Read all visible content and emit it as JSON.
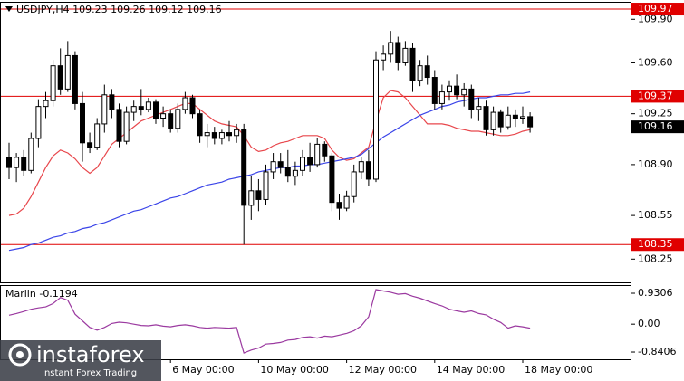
{
  "chart_data": [
    {
      "type": "candlestick",
      "title": "USDJPY,H4",
      "categories": [
        null,
        null,
        null,
        null,
        null,
        null,
        null,
        null,
        null,
        null,
        null,
        null,
        null,
        null,
        null,
        null,
        null,
        null,
        null,
        null,
        null,
        null,
        "6 May 00:00",
        null,
        null,
        null,
        null,
        null,
        null,
        null,
        null,
        null,
        null,
        null,
        "10 May 00:00",
        null,
        null,
        null,
        null,
        null,
        null,
        null,
        null,
        null,
        null,
        null,
        "12 May 00:00",
        null,
        null,
        null,
        null,
        null,
        null,
        null,
        null,
        null,
        null,
        null,
        "14 May 00:00",
        null,
        null,
        null,
        null,
        null,
        null,
        null,
        null,
        null,
        null,
        null,
        "18 May 00:00",
        null
      ],
      "ohlc": [
        [
          108.95,
          109.05,
          108.8,
          108.88
        ],
        [
          108.88,
          108.98,
          108.78,
          108.95
        ],
        [
          108.95,
          109.0,
          108.82,
          108.86
        ],
        [
          108.86,
          109.12,
          108.84,
          109.08
        ],
        [
          109.08,
          109.35,
          109.02,
          109.3
        ],
        [
          109.3,
          109.4,
          109.22,
          109.34
        ],
        [
          109.34,
          109.62,
          109.3,
          109.58
        ],
        [
          109.58,
          109.7,
          109.38,
          109.42
        ],
        [
          109.42,
          109.75,
          109.4,
          109.65
        ],
        [
          109.65,
          109.68,
          109.28,
          109.32
        ],
        [
          109.32,
          109.4,
          108.92,
          109.05
        ],
        [
          109.05,
          109.12,
          108.98,
          109.02
        ],
        [
          109.02,
          109.22,
          109.0,
          109.18
        ],
        [
          109.18,
          109.45,
          109.12,
          109.38
        ],
        [
          109.38,
          109.42,
          109.22,
          109.28
        ],
        [
          109.28,
          109.32,
          109.02,
          109.06
        ],
        [
          109.06,
          109.3,
          109.04,
          109.26
        ],
        [
          109.26,
          109.34,
          109.2,
          109.3
        ],
        [
          109.3,
          109.42,
          109.24,
          109.28
        ],
        [
          109.28,
          109.36,
          109.26,
          109.33
        ],
        [
          109.33,
          109.35,
          109.18,
          109.22
        ],
        [
          109.22,
          109.3,
          109.16,
          109.25
        ],
        [
          109.25,
          109.28,
          109.12,
          109.15
        ],
        [
          109.15,
          109.32,
          109.12,
          109.28
        ],
        [
          109.28,
          109.4,
          109.25,
          109.36
        ],
        [
          109.36,
          109.38,
          109.22,
          109.25
        ],
        [
          109.25,
          109.28,
          109.05,
          109.1
        ],
        [
          109.1,
          109.18,
          109.02,
          109.12
        ],
        [
          109.12,
          109.16,
          109.04,
          109.08
        ],
        [
          109.08,
          109.14,
          109.04,
          109.12
        ],
        [
          109.12,
          109.2,
          109.06,
          109.1
        ],
        [
          109.1,
          109.18,
          109.05,
          109.14
        ],
        [
          109.14,
          109.18,
          108.35,
          108.62
        ],
        [
          108.62,
          108.82,
          108.52,
          108.72
        ],
        [
          108.72,
          108.8,
          108.58,
          108.66
        ],
        [
          108.66,
          108.9,
          108.62,
          108.85
        ],
        [
          108.85,
          108.98,
          108.8,
          108.92
        ],
        [
          108.92,
          108.98,
          108.84,
          108.88
        ],
        [
          108.88,
          109.0,
          108.78,
          108.82
        ],
        [
          108.82,
          108.92,
          108.76,
          108.86
        ],
        [
          108.86,
          109.0,
          108.82,
          108.95
        ],
        [
          108.95,
          109.05,
          108.85,
          108.9
        ],
        [
          108.9,
          109.08,
          108.88,
          109.04
        ],
        [
          109.04,
          109.06,
          108.92,
          108.96
        ],
        [
          108.96,
          108.98,
          108.58,
          108.64
        ],
        [
          108.64,
          108.7,
          108.52,
          108.6
        ],
        [
          108.6,
          108.72,
          108.58,
          108.68
        ],
        [
          108.68,
          108.9,
          108.64,
          108.85
        ],
        [
          108.85,
          108.95,
          108.8,
          108.92
        ],
        [
          108.92,
          109.0,
          108.75,
          108.8
        ],
        [
          108.8,
          109.68,
          108.78,
          109.62
        ],
        [
          109.62,
          109.72,
          109.55,
          109.66
        ],
        [
          109.66,
          109.82,
          109.6,
          109.74
        ],
        [
          109.74,
          109.78,
          109.55,
          109.6
        ],
        [
          109.6,
          109.75,
          109.58,
          109.7
        ],
        [
          109.7,
          109.74,
          109.4,
          109.48
        ],
        [
          109.48,
          109.62,
          109.44,
          109.58
        ],
        [
          109.58,
          109.65,
          109.45,
          109.5
        ],
        [
          109.5,
          109.55,
          109.28,
          109.32
        ],
        [
          109.32,
          109.45,
          109.28,
          109.4
        ],
        [
          109.4,
          109.48,
          109.34,
          109.44
        ],
        [
          109.44,
          109.52,
          109.35,
          109.38
        ],
        [
          109.38,
          109.46,
          109.3,
          109.42
        ],
        [
          109.42,
          109.45,
          109.22,
          109.28
        ],
        [
          109.28,
          109.36,
          109.2,
          109.3
        ],
        [
          109.3,
          109.34,
          109.1,
          109.14
        ],
        [
          109.14,
          109.3,
          109.1,
          109.26
        ],
        [
          109.26,
          109.28,
          109.12,
          109.16
        ],
        [
          109.16,
          109.3,
          109.14,
          109.24
        ],
        [
          109.24,
          109.28,
          109.16,
          109.22
        ],
        [
          109.22,
          109.3,
          109.18,
          109.23
        ],
        [
          109.23,
          109.26,
          109.12,
          109.16
        ]
      ],
      "up_color": "#ffffff",
      "down_color": "#000000",
      "lines": [
        {
          "color": "#e8474c",
          "values": [
            108.55,
            108.56,
            108.6,
            108.68,
            108.78,
            108.88,
            108.96,
            109.0,
            108.98,
            108.94,
            108.88,
            108.84,
            108.88,
            108.96,
            109.04,
            109.08,
            109.12,
            109.16,
            109.2,
            109.22,
            109.24,
            109.26,
            109.28,
            109.3,
            109.32,
            109.32,
            109.28,
            109.24,
            109.2,
            109.18,
            109.17,
            109.16,
            109.1,
            109.02,
            108.99,
            109.0,
            109.03,
            109.05,
            109.06,
            109.08,
            109.1,
            109.1,
            109.1,
            109.08,
            109.0,
            108.95,
            108.93,
            108.94,
            108.98,
            109.02,
            109.2,
            109.36,
            109.41,
            109.4,
            109.36,
            109.3,
            109.24,
            109.18,
            109.18,
            109.18,
            109.17,
            109.15,
            109.14,
            109.13,
            109.13,
            109.12,
            109.11,
            109.1,
            109.1,
            109.11,
            109.13,
            109.14
          ]
        },
        {
          "color": "#3a44e8",
          "values": [
            108.31,
            108.32,
            108.33,
            108.35,
            108.36,
            108.38,
            108.4,
            108.41,
            108.43,
            108.44,
            108.46,
            108.47,
            108.49,
            108.5,
            108.52,
            108.54,
            108.56,
            108.58,
            108.59,
            108.61,
            108.63,
            108.65,
            108.67,
            108.68,
            108.7,
            108.72,
            108.74,
            108.76,
            108.77,
            108.78,
            108.8,
            108.81,
            108.82,
            108.83,
            108.85,
            108.86,
            108.87,
            108.88,
            108.88,
            108.89,
            108.89,
            108.9,
            108.9,
            108.91,
            108.92,
            108.93,
            108.94,
            108.95,
            108.97,
            109.01,
            109.05,
            109.09,
            109.12,
            109.15,
            109.18,
            109.21,
            109.24,
            109.26,
            109.28,
            109.3,
            109.31,
            109.33,
            109.34,
            109.35,
            109.36,
            109.36,
            109.37,
            109.38,
            109.38,
            109.39,
            109.39,
            109.4
          ]
        }
      ],
      "levels": [
        {
          "value": 109.97,
          "color": "#e00000"
        },
        {
          "value": 109.37,
          "color": "#e00000"
        },
        {
          "value": 108.35,
          "color": "#e00000"
        }
      ],
      "last_price": 109.16,
      "ylim": [
        108.09,
        110.02
      ],
      "yticks": [
        {
          "value": 109.9,
          "label": "109.90"
        },
        {
          "value": 109.6,
          "label": "109.60"
        },
        109.25,
        {
          "value": 108.9,
          "label": "108.90"
        },
        108.55,
        108.25
      ]
    },
    {
      "type": "line",
      "series": [
        {
          "name": "Marlin",
          "color": "#9b3aa0",
          "values": [
            0.27,
            0.32,
            0.38,
            0.45,
            0.49,
            0.52,
            0.62,
            0.8,
            0.72,
            0.3,
            0.1,
            -0.1,
            -0.18,
            -0.1,
            0.02,
            0.06,
            0.04,
            0.0,
            -0.04,
            -0.05,
            -0.02,
            -0.06,
            -0.08,
            -0.04,
            -0.02,
            -0.05,
            -0.1,
            -0.12,
            -0.1,
            -0.11,
            -0.12,
            -0.1,
            -0.87,
            -0.78,
            -0.72,
            -0.6,
            -0.58,
            -0.55,
            -0.48,
            -0.46,
            -0.4,
            -0.38,
            -0.42,
            -0.36,
            -0.38,
            -0.33,
            -0.28,
            -0.2,
            -0.05,
            0.22,
            1.04,
            1.0,
            0.96,
            0.9,
            0.92,
            0.84,
            0.78,
            0.7,
            0.62,
            0.55,
            0.45,
            0.4,
            0.36,
            0.4,
            0.32,
            0.28,
            0.15,
            0.05,
            -0.12,
            -0.05,
            -0.08,
            -0.1194
          ]
        }
      ],
      "ylim": [
        -1.058,
        1.149
      ],
      "yticks": [
        0.9306,
        {
          "value": 0,
          "label": "0.00"
        },
        -0.8406
      ]
    }
  ],
  "watermark": {
    "brand": "instaforex",
    "tagline": "Instant Forex Trading"
  }
}
